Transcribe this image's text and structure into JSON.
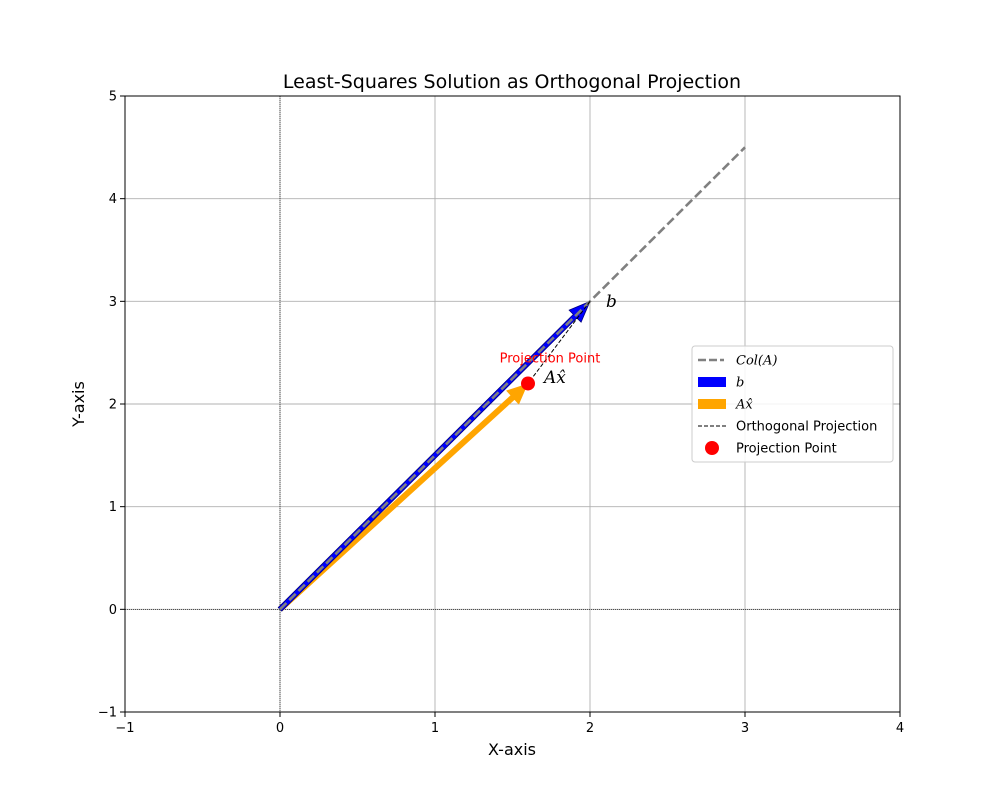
{
  "chart_data": {
    "type": "line",
    "title": "Least-Squares Solution as Orthogonal Projection",
    "xlabel": "X-axis",
    "ylabel": "Y-axis",
    "xlim": [
      -1,
      4
    ],
    "ylim": [
      -1,
      5
    ],
    "xticks": [
      -1,
      0,
      1,
      2,
      3,
      4
    ],
    "yticks": [
      -1,
      0,
      1,
      2,
      3,
      4,
      5
    ],
    "xtick_labels": [
      "−1",
      "0",
      "1",
      "2",
      "3",
      "4"
    ],
    "ytick_labels": [
      "−1",
      "0",
      "1",
      "2",
      "3",
      "4",
      "5"
    ],
    "grid": true,
    "legend_position": "center-right",
    "col_space_line": {
      "name": "Col(A)",
      "color": "#808080",
      "style": "dashed",
      "points": [
        [
          0,
          0
        ],
        [
          3,
          4.5
        ]
      ]
    },
    "vector_b": {
      "name": "b",
      "label": "b",
      "color": "#0000ff",
      "origin": [
        0,
        0
      ],
      "tip": [
        2,
        3
      ]
    },
    "vector_ax": {
      "name": "Ax̂",
      "label": "Ax̂",
      "color": "#ffa500",
      "origin": [
        0,
        0
      ],
      "tip": [
        1.6,
        2.2
      ]
    },
    "orthogonal_projection": {
      "name": "Orthogonal Projection",
      "color": "#000000",
      "style": "dashed",
      "points": [
        [
          2,
          3
        ],
        [
          1.6,
          2.2
        ]
      ]
    },
    "projection_point": {
      "name": "Projection Point",
      "label": "Projection Point",
      "color": "#ff0000",
      "point": [
        1.6,
        2.2
      ]
    },
    "legend": [
      {
        "label": "Col(A)",
        "kind": "dashed-line",
        "color": "#808080"
      },
      {
        "label": "b",
        "kind": "patch",
        "color": "#0000ff"
      },
      {
        "label": "Ax̂",
        "kind": "patch",
        "color": "#ffa500"
      },
      {
        "label": "Orthogonal Projection",
        "kind": "thin-dashed-line",
        "color": "#000000"
      },
      {
        "label": "Projection Point",
        "kind": "marker",
        "color": "#ff0000"
      }
    ]
  }
}
